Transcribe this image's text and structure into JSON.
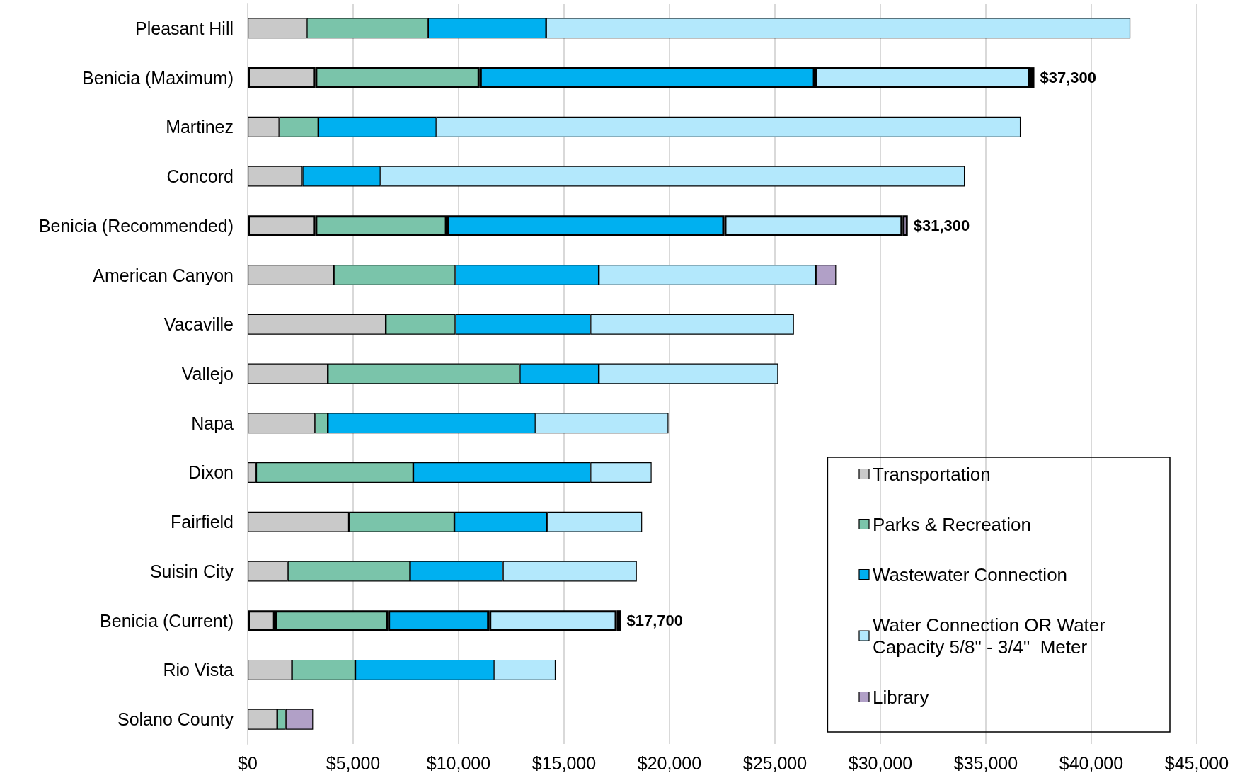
{
  "chart_data": {
    "type": "bar",
    "orientation": "horizontal",
    "stacked": true,
    "categories": [
      "Pleasant Hill",
      "Benicia (Maximum)",
      "Martinez",
      "Concord",
      "Benicia (Recommended)",
      "American Canyon",
      "Vacaville",
      "Vallejo",
      "Napa",
      "Dixon",
      "Fairfield",
      "Suisin City",
      "Benicia (Current)",
      "Rio Vista",
      "Solano County"
    ],
    "series": [
      {
        "name": "Transportation",
        "color": "#c9c9c9",
        "values": [
          2800,
          3200,
          1500,
          2600,
          3200,
          4100,
          6550,
          3800,
          3200,
          400,
          4800,
          1900,
          1300,
          2100,
          1400
        ]
      },
      {
        "name": "Parks & Recreation",
        "color": "#7ac4aa",
        "values": [
          5750,
          7800,
          1850,
          0,
          6250,
          5750,
          3300,
          9100,
          600,
          7450,
          5000,
          5800,
          5350,
          3000,
          400
        ]
      },
      {
        "name": "Wastewater Connection",
        "color": "#00b0f0",
        "values": [
          5600,
          15900,
          5600,
          3700,
          13150,
          6800,
          6400,
          3750,
          9850,
          8400,
          4400,
          4400,
          4800,
          6600,
          0
        ]
      },
      {
        "name": "Water Connection OR Water Capacity 5/8\" - 3/4\"  Meter",
        "color": "#b3e8fc",
        "values": [
          27700,
          10200,
          27700,
          27700,
          8450,
          10300,
          9650,
          8500,
          6300,
          2900,
          4500,
          6350,
          6050,
          2900,
          0
        ]
      },
      {
        "name": "Library",
        "color": "#b1a0c7",
        "values": [
          0,
          200,
          0,
          0,
          250,
          950,
          0,
          0,
          0,
          0,
          0,
          0,
          200,
          0,
          1300
        ]
      }
    ],
    "totals": [
      null,
      "$37,300",
      null,
      null,
      "$31,300",
      null,
      null,
      null,
      null,
      null,
      null,
      null,
      "$17,700",
      null,
      null
    ],
    "xlim": [
      0,
      45000
    ],
    "xticks": [
      {
        "value": 0,
        "label": "$0"
      },
      {
        "value": 5000,
        "label": "$5,000"
      },
      {
        "value": 10000,
        "label": "$10,000"
      },
      {
        "value": 15000,
        "label": "$15,000"
      },
      {
        "value": 20000,
        "label": "$20,000"
      },
      {
        "value": 25000,
        "label": "$25,000"
      },
      {
        "value": 30000,
        "label": "$30,000"
      },
      {
        "value": 35000,
        "label": "$35,000"
      },
      {
        "value": 40000,
        "label": "$40,000"
      },
      {
        "value": 45000,
        "label": "$45,000"
      }
    ],
    "grid": "x",
    "legend": "bottom right"
  }
}
